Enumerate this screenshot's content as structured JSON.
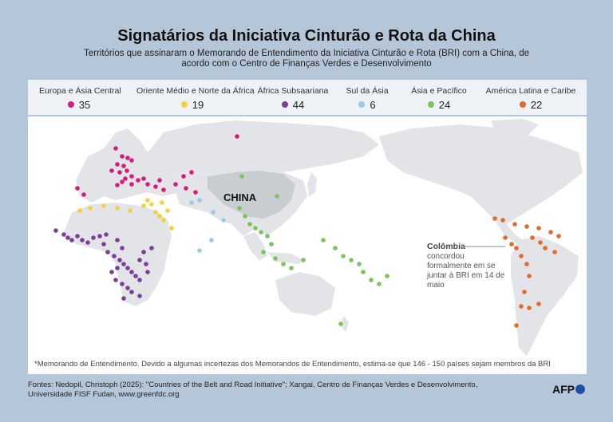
{
  "title": "Signatários da Iniciativa Cinturão e Rota da China",
  "subtitle": "Territórios que assinaram o Memorando de Entendimento da Iniciativa Cinturão e Rota (BRI) com a China, de acordo com o Centro de Finanças Verdes e Desenvolvimento",
  "legend": [
    {
      "label": "Europa e Ásia Central",
      "count": "35",
      "color": "#d81b7a"
    },
    {
      "label": "Oriente Médio e Norte da África",
      "count": "19",
      "color": "#f4d03f"
    },
    {
      "label": "África Subsaariana",
      "count": "44",
      "color": "#7b3f98"
    },
    {
      "label": "Sul da Ásia",
      "count": "6",
      "color": "#9cc9e4"
    },
    {
      "label": "Ásia e Pacífico",
      "count": "24",
      "color": "#7cc35a"
    },
    {
      "label": "América Latina e Caribe",
      "count": "22",
      "color": "#e26b2c"
    }
  ],
  "map": {
    "china_label": "CHINA",
    "colombia_title": "Colômbia",
    "colombia_text": "concordou formalmente em se juntar à BRI em 14 de maio",
    "land_color": "#e2e4e7",
    "china_color": "#c9cdd2",
    "water_color": "#ffffff"
  },
  "footnote": "*Memorando de Entendimento. Devido a algumas incertezas dos Memorandos de Entendimento, estima-se que 146 - 150 países sejam membros da BRI",
  "sources": "Fontes: Nedopil, Christoph (2025): \"Countries of the Belt and Road Initiative\";  Xangai, Centro de Finanças Verdes e Desenvolvimento, Universidade FISF Fudan, www.greenfdc.org",
  "logo": "AFP"
}
